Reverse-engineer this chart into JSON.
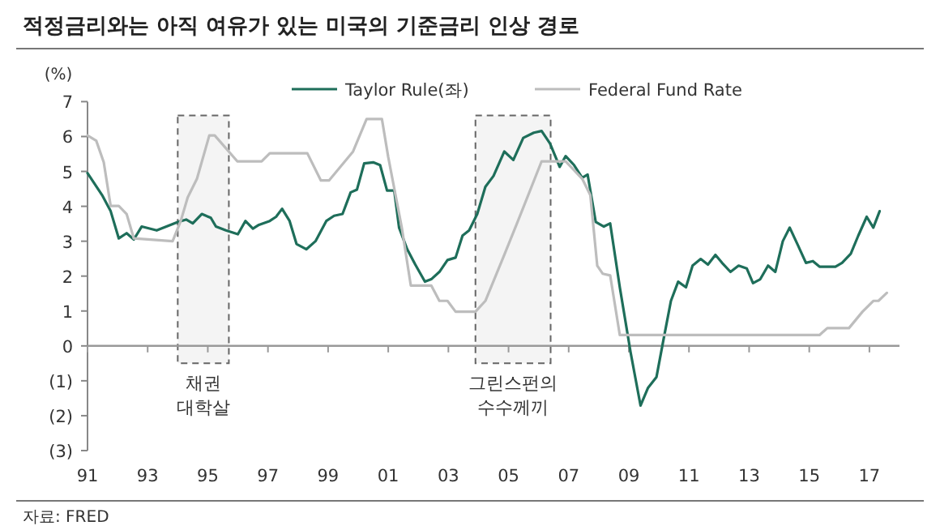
{
  "chart_data": {
    "type": "line",
    "title": "적정금리와는 아직 여유가 있는 미국의 기준금리 인상 경로",
    "ylabel": "(%)",
    "annotations": [
      "자료: FRED"
    ],
    "legend": "top",
    "line_style": "solid",
    "marker": "none",
    "xlim": [
      1991,
      2018
    ],
    "xticks": [
      {
        "value": 1991,
        "label": "91"
      },
      {
        "value": 1993,
        "label": "93"
      },
      {
        "value": 1995,
        "label": "95"
      },
      {
        "value": 1997,
        "label": "97"
      },
      {
        "value": 1999,
        "label": "99"
      },
      {
        "value": 2001,
        "label": "01"
      },
      {
        "value": 2003,
        "label": "03"
      },
      {
        "value": 2005,
        "label": "05"
      },
      {
        "value": 2007,
        "label": "07"
      },
      {
        "value": 2009,
        "label": "09"
      },
      {
        "value": 2011,
        "label": "11"
      },
      {
        "value": 2013,
        "label": "13"
      },
      {
        "value": 2015,
        "label": "15"
      },
      {
        "value": 2017,
        "label": "17"
      }
    ],
    "ylim": [
      -3,
      7
    ],
    "yticks": [
      {
        "value": -3,
        "label": "(3)"
      },
      {
        "value": -2,
        "label": "(2)"
      },
      {
        "value": -1,
        "label": "(1)"
      },
      0,
      1,
      2,
      3,
      4,
      5,
      6,
      7
    ],
    "bands": [
      {
        "axis": "x",
        "from": 1994.0,
        "to": 1995.7,
        "label": "채권\n대학살",
        "color": "#f4f4f4"
      },
      {
        "axis": "x",
        "from": 2003.9,
        "to": 2006.4,
        "label": "그린스펀의\n수수께끼",
        "color": "#f4f4f4"
      }
    ],
    "series": [
      {
        "name": "Taylor Rule(좌)",
        "color": "#1e6e5a",
        "x": [
          1991.0,
          1991.5,
          1991.77,
          1992.04,
          1992.3,
          1992.54,
          1992.8,
          1993.3,
          1994.0,
          1994.28,
          1994.5,
          1994.8,
          1995.1,
          1995.27,
          1995.6,
          1996.0,
          1996.25,
          1996.5,
          1996.7,
          1997.06,
          1997.27,
          1997.47,
          1997.72,
          1997.95,
          1998.28,
          1998.58,
          1998.94,
          1999.2,
          1999.48,
          1999.75,
          1999.96,
          2000.2,
          2000.5,
          2000.73,
          2000.96,
          2001.2,
          2001.36,
          2001.63,
          2001.9,
          2002.22,
          2002.43,
          2002.7,
          2002.97,
          2003.24,
          2003.47,
          2003.69,
          2003.96,
          2004.23,
          2004.5,
          2004.86,
          2005.16,
          2005.49,
          2005.84,
          2006.1,
          2006.38,
          2006.7,
          2006.9,
          2007.18,
          2007.45,
          2007.63,
          2007.9,
          2008.17,
          2008.38,
          2008.7,
          2009.06,
          2009.39,
          2009.64,
          2009.92,
          2010.14,
          2010.4,
          2010.64,
          2010.9,
          2011.12,
          2011.39,
          2011.63,
          2011.88,
          2012.1,
          2012.38,
          2012.65,
          2012.92,
          2013.13,
          2013.37,
          2013.63,
          2013.87,
          2014.12,
          2014.35,
          2014.62,
          2014.89,
          2015.12,
          2015.34,
          2015.87,
          2016.09,
          2016.38,
          2016.63,
          2016.91,
          2017.13,
          2017.34
        ],
        "values": [
          4.95,
          4.3,
          3.86,
          3.08,
          3.23,
          3.05,
          3.42,
          3.31,
          3.55,
          3.62,
          3.51,
          3.78,
          3.67,
          3.42,
          3.31,
          3.2,
          3.58,
          3.36,
          3.47,
          3.58,
          3.7,
          3.93,
          3.58,
          2.92,
          2.77,
          3.0,
          3.58,
          3.73,
          3.78,
          4.4,
          4.48,
          5.23,
          5.26,
          5.18,
          4.45,
          4.45,
          3.39,
          2.77,
          2.33,
          1.84,
          1.91,
          2.12,
          2.46,
          2.53,
          3.16,
          3.31,
          3.78,
          4.56,
          4.87,
          5.57,
          5.33,
          5.96,
          6.11,
          6.16,
          5.8,
          5.13,
          5.44,
          5.18,
          4.82,
          4.91,
          3.55,
          3.42,
          3.51,
          1.68,
          -0.19,
          -1.71,
          -1.2,
          -0.89,
          0.12,
          1.29,
          1.84,
          1.68,
          2.3,
          2.49,
          2.33,
          2.61,
          2.38,
          2.12,
          2.3,
          2.22,
          1.8,
          1.91,
          2.3,
          2.12,
          3.0,
          3.39,
          2.89,
          2.38,
          2.43,
          2.27,
          2.27,
          2.38,
          2.64,
          3.16,
          3.7,
          3.39,
          3.86
        ]
      },
      {
        "name": "Federal Fund Rate",
        "color": "#bdbdbd",
        "x": [
          1991.0,
          1991.29,
          1991.54,
          1991.77,
          1992.04,
          1992.3,
          1992.54,
          1993.83,
          1994.1,
          1994.33,
          1994.64,
          1995.05,
          1995.23,
          1995.98,
          1996.79,
          1997.06,
          1998.31,
          1998.76,
          1999.03,
          1999.83,
          2000.28,
          2000.79,
          2001.0,
          2001.45,
          2001.75,
          2002.43,
          2002.7,
          2002.97,
          2003.24,
          2003.9,
          2004.23,
          2004.86,
          2005.3,
          2006.1,
          2006.9,
          2007.45,
          2007.72,
          2007.95,
          2008.13,
          2008.38,
          2008.7,
          2015.34,
          2015.6,
          2016.32,
          2016.77,
          2017.13,
          2017.3,
          2017.58
        ],
        "values": [
          6.03,
          5.88,
          5.26,
          4.01,
          4.01,
          3.78,
          3.08,
          3.0,
          3.58,
          4.25,
          4.79,
          6.03,
          6.03,
          5.29,
          5.29,
          5.52,
          5.52,
          4.74,
          4.74,
          5.57,
          6.5,
          6.5,
          5.41,
          3.39,
          1.73,
          1.73,
          1.29,
          1.29,
          0.98,
          0.98,
          1.29,
          2.61,
          3.55,
          5.29,
          5.29,
          4.79,
          4.32,
          2.3,
          2.07,
          2.02,
          0.31,
          0.31,
          0.51,
          0.51,
          0.98,
          1.29,
          1.29,
          1.52
        ]
      }
    ]
  }
}
